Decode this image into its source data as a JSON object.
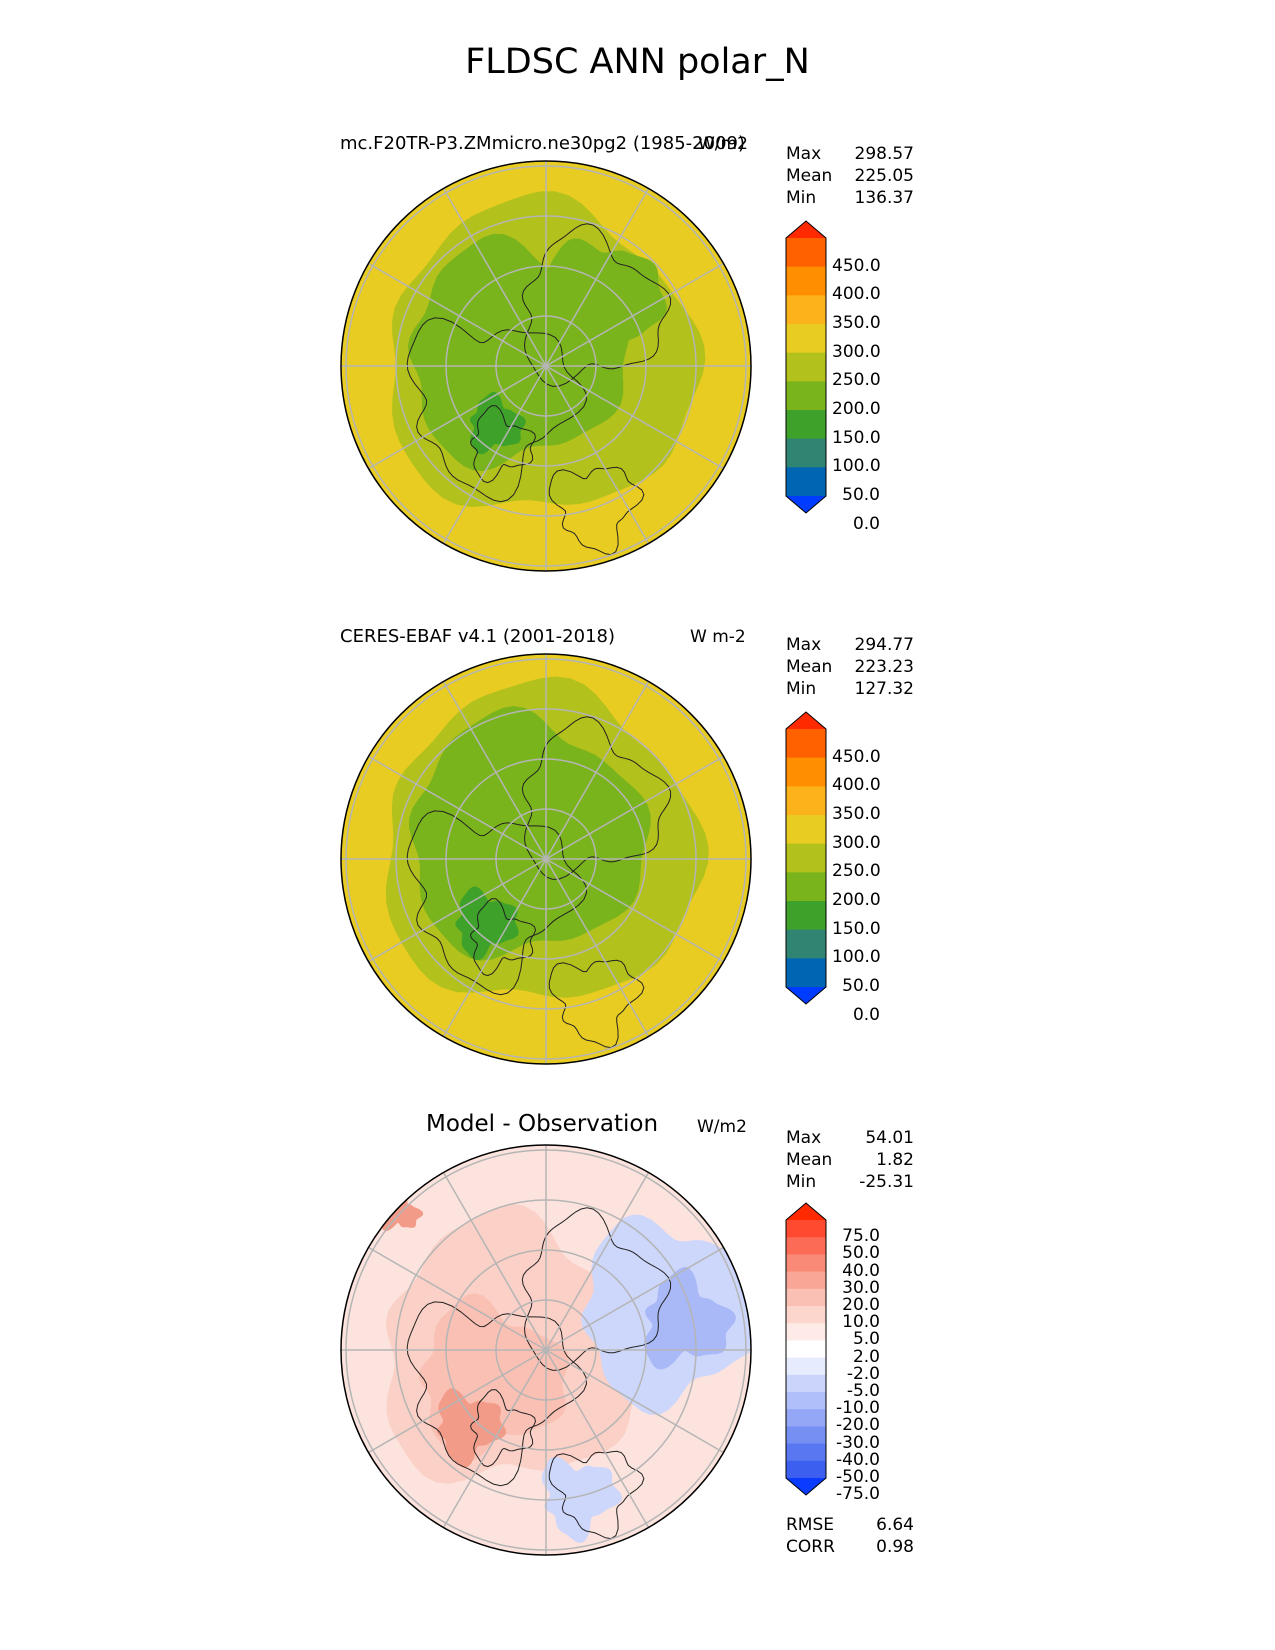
{
  "title": "FLDSC ANN polar_N",
  "panels": [
    {
      "id": "test",
      "title": "mc.F20TR-P3.ZMmicro.ne30pg2 (1985-2009)",
      "units": "W/m2",
      "stats": [
        {
          "label": "Max",
          "value": "298.57"
        },
        {
          "label": "Mean",
          "value": "225.05"
        },
        {
          "label": "Min",
          "value": "136.37"
        }
      ],
      "colorbar": {
        "labels": [
          "450.0",
          "400.0",
          "350.0",
          "300.0",
          "250.0",
          "200.0",
          "150.0",
          "100.0",
          "50.0",
          "0.0"
        ],
        "colors": [
          "#ff2a00",
          "#ff6000",
          "#ff8e00",
          "#fcb21a",
          "#e9cc22",
          "#b3c11c",
          "#7ab41c",
          "#3da12a",
          "#2f8472",
          "#0065b3",
          "#003cff"
        ]
      },
      "fill": {
        "outer": "#e9cc22",
        "mid": "#b3c11c",
        "inner": "#7ab41c",
        "core": "#3da12a"
      }
    },
    {
      "id": "reference",
      "title": "CERES-EBAF v4.1 (2001-2018)",
      "units": "W m-2",
      "stats": [
        {
          "label": "Max",
          "value": "294.77"
        },
        {
          "label": "Mean",
          "value": "223.23"
        },
        {
          "label": "Min",
          "value": "127.32"
        }
      ],
      "colorbar": {
        "labels": [
          "450.0",
          "400.0",
          "350.0",
          "300.0",
          "250.0",
          "200.0",
          "150.0",
          "100.0",
          "50.0",
          "0.0"
        ],
        "colors": [
          "#ff2a00",
          "#ff6000",
          "#ff8e00",
          "#fcb21a",
          "#e9cc22",
          "#b3c11c",
          "#7ab41c",
          "#3da12a",
          "#2f8472",
          "#0065b3",
          "#003cff"
        ]
      },
      "fill": {
        "outer": "#e9cc22",
        "mid": "#b3c11c",
        "inner": "#7ab41c",
        "core": "#3da12a"
      }
    },
    {
      "id": "diff",
      "title": "Model - Observation",
      "units": "W/m2",
      "stats": [
        {
          "label": "Max",
          "value": "54.01"
        },
        {
          "label": "Mean",
          "value": "1.82"
        },
        {
          "label": "Min",
          "value": "-25.31"
        }
      ],
      "colorbar": {
        "labels": [
          "75.0",
          "50.0",
          "40.0",
          "30.0",
          "20.0",
          "10.0",
          "5.0",
          "2.0",
          "-2.0",
          "-5.0",
          "-10.0",
          "-20.0",
          "-30.0",
          "-40.0",
          "-50.0",
          "-75.0"
        ],
        "colors": [
          "#ff2a00",
          "#ff4a30",
          "#fb6b56",
          "#f98a77",
          "#f9a696",
          "#fbc0b4",
          "#fcd6cd",
          "#feeae6",
          "#ffffff",
          "#e6ebfd",
          "#cbd5fb",
          "#b0bff9",
          "#93a7f6",
          "#768ff3",
          "#5877f1",
          "#3c5ff0",
          "#0a3cff"
        ]
      },
      "fill": {
        "outer": "#fde3dd",
        "mid": "#fbd0c6",
        "inner": "#f9c0b3",
        "core": "#f29b89"
      }
    }
  ],
  "metrics": [
    {
      "label": "RMSE",
      "value": "6.64"
    },
    {
      "label": "CORR",
      "value": "0.98"
    }
  ]
}
